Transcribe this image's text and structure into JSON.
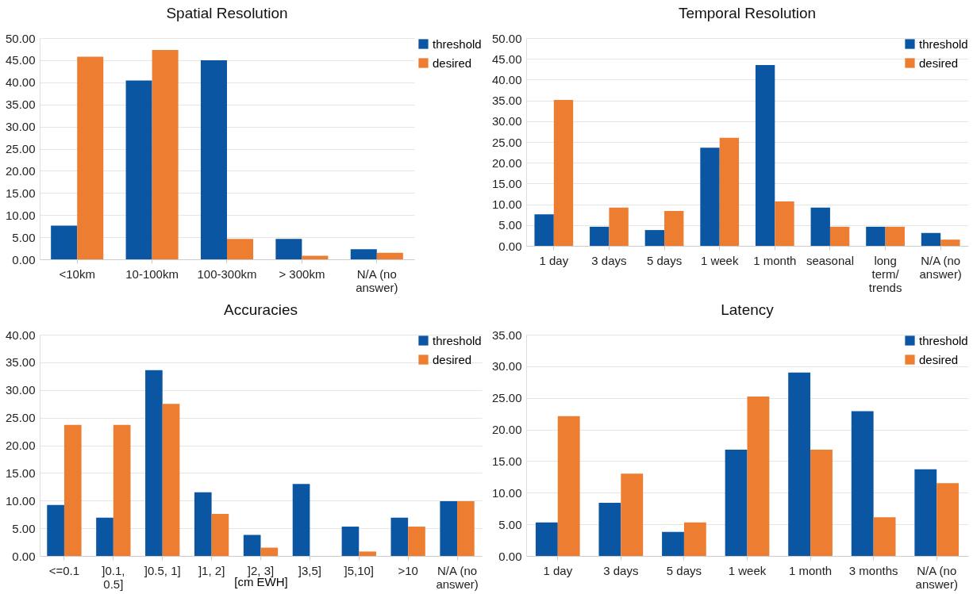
{
  "chart_data": [
    {
      "type": "bar",
      "title": "Spatial Resolution",
      "categories": [
        "<10km",
        "10-100km",
        "100-300km",
        "> 300km",
        "N/A (no answer)"
      ],
      "series": [
        {
          "name": "threshold",
          "color": "#0b56a3",
          "values": [
            7.6,
            40.4,
            45.0,
            4.6,
            2.3
          ]
        },
        {
          "name": "desired",
          "color": "#ed7d31",
          "values": [
            45.8,
            47.3,
            4.6,
            0.8,
            1.5
          ]
        }
      ],
      "ylim": [
        0,
        50
      ],
      "yticks": [
        {
          "value": 0,
          "label": "0.00"
        },
        {
          "value": 5,
          "label": "5.00"
        },
        {
          "value": 10,
          "label": "10.00"
        },
        {
          "value": 15,
          "label": "15.00"
        },
        {
          "value": 20,
          "label": "20.00"
        },
        {
          "value": 25,
          "label": "25.00"
        },
        {
          "value": 30,
          "label": "30.00"
        },
        {
          "value": 35,
          "label": "35.00"
        },
        {
          "value": 40,
          "label": "40.00"
        },
        {
          "value": 45,
          "label": "45.00"
        },
        {
          "value": 50,
          "label": "50.00"
        }
      ],
      "grid": "y",
      "legend": "right"
    },
    {
      "type": "bar",
      "title": "Temporal Resolution",
      "categories": [
        "1 day",
        "3 days",
        "5 days",
        "1 week",
        "1 month",
        "seasonal",
        "long term/ trends",
        "N/A (no answer)"
      ],
      "series": [
        {
          "name": "threshold",
          "color": "#0b56a3",
          "values": [
            7.6,
            4.6,
            3.8,
            23.6,
            43.5,
            9.2,
            4.6,
            3.1
          ]
        },
        {
          "name": "desired",
          "color": "#ed7d31",
          "values": [
            35.1,
            9.2,
            8.4,
            26.0,
            10.7,
            4.6,
            4.6,
            1.5
          ]
        }
      ],
      "ylim": [
        0,
        50
      ],
      "yticks": [
        {
          "value": 0,
          "label": "0.00"
        },
        {
          "value": 5,
          "label": "5.00"
        },
        {
          "value": 10,
          "label": "10.00"
        },
        {
          "value": 15,
          "label": "15.00"
        },
        {
          "value": 20,
          "label": "20.00"
        },
        {
          "value": 25,
          "label": "25.00"
        },
        {
          "value": 30,
          "label": "30.00"
        },
        {
          "value": 35,
          "label": "35.00"
        },
        {
          "value": 40,
          "label": "40.00"
        },
        {
          "value": 45,
          "label": "45.00"
        },
        {
          "value": 50,
          "label": "50.00"
        }
      ],
      "grid": "y",
      "legend": "top right"
    },
    {
      "type": "bar",
      "title": "Accuracies",
      "xlabel": "[cm EWH]",
      "categories": [
        "<=0.1",
        "]0.1, 0.5]",
        "]0.5, 1]",
        "]1, 2]",
        "]2, 3]",
        "]3,5]",
        "]5,10]",
        ">10",
        "N/A (no answer)"
      ],
      "series": [
        {
          "name": "threshold",
          "color": "#0b56a3",
          "values": [
            9.2,
            6.9,
            33.6,
            11.5,
            3.8,
            13.0,
            5.3,
            6.9,
            9.9
          ]
        },
        {
          "name": "desired",
          "color": "#ed7d31",
          "values": [
            23.7,
            23.7,
            27.5,
            7.6,
            1.5,
            0,
            0.8,
            5.3,
            9.9
          ]
        }
      ],
      "ylim": [
        0,
        40
      ],
      "yticks": [
        {
          "value": 0,
          "label": "0.00"
        },
        {
          "value": 5,
          "label": "5.00"
        },
        {
          "value": 10,
          "label": "10.00"
        },
        {
          "value": 15,
          "label": "15.00"
        },
        {
          "value": 20,
          "label": "20.00"
        },
        {
          "value": 25,
          "label": "25.00"
        },
        {
          "value": 30,
          "label": "30.00"
        },
        {
          "value": 35,
          "label": "35.00"
        },
        {
          "value": 40,
          "label": "40.00"
        }
      ],
      "grid": "y",
      "legend": "top right"
    },
    {
      "type": "bar",
      "title": "Latency",
      "categories": [
        "1 day",
        "3 days",
        "5 days",
        "1 week",
        "1 month",
        "3 months",
        "N/A (no answer)"
      ],
      "series": [
        {
          "name": "threshold",
          "color": "#0b56a3",
          "values": [
            5.3,
            8.4,
            3.8,
            16.8,
            29.0,
            22.9,
            13.7
          ]
        },
        {
          "name": "desired",
          "color": "#ed7d31",
          "values": [
            22.1,
            13.0,
            5.3,
            25.2,
            16.8,
            6.1,
            11.5
          ]
        }
      ],
      "ylim": [
        0,
        35
      ],
      "yticks": [
        {
          "value": 0,
          "label": "0.00"
        },
        {
          "value": 5,
          "label": "5.00"
        },
        {
          "value": 10,
          "label": "10.00"
        },
        {
          "value": 15,
          "label": "15.00"
        },
        {
          "value": 20,
          "label": "20.00"
        },
        {
          "value": 25,
          "label": "25.00"
        },
        {
          "value": 30,
          "label": "30.00"
        },
        {
          "value": 35,
          "label": "35.00"
        }
      ],
      "grid": "y",
      "legend": "top right"
    }
  ]
}
